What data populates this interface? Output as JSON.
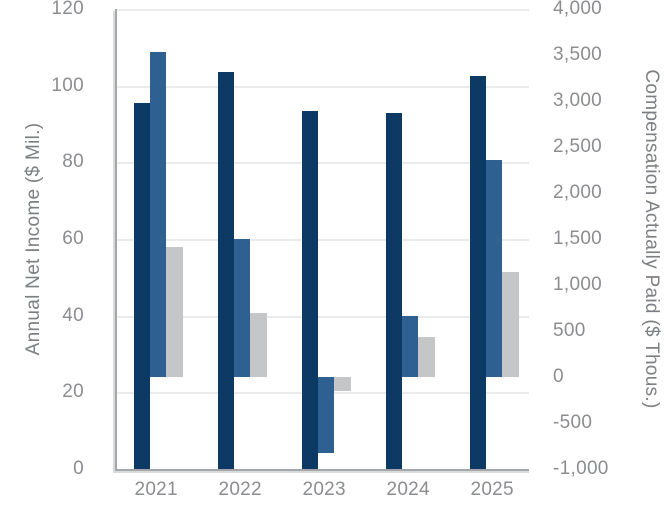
{
  "chart_data": {
    "type": "bar",
    "title": "",
    "legend": "none",
    "grid": true,
    "categories": [
      "2021",
      "2022",
      "2023",
      "2024",
      "2025"
    ],
    "series": [
      {
        "name": "dark-navy-bars-annual-net-income",
        "axis": "left",
        "color": "#0d3a64",
        "values": [
          95.5,
          103.5,
          93.5,
          93,
          102.5
        ]
      },
      {
        "name": "medium-blue-bars-compensation",
        "axis": "right",
        "color": "#2e6191",
        "values": [
          3530,
          1500,
          -830,
          665,
          2360
        ]
      },
      {
        "name": "light-gray-bars-compensation",
        "axis": "right",
        "color": "#c5c6c8",
        "values": [
          1410,
          700,
          -150,
          430,
          1140
        ]
      }
    ],
    "left_axis": {
      "label": "Annual Net Income ($ Mil.)",
      "min": 0,
      "max": 120,
      "tick_step": 20,
      "tick_values": [
        120,
        100,
        80,
        60,
        40,
        20,
        0
      ],
      "tick_labels": [
        "120",
        "100",
        "80",
        "60",
        "40",
        "20",
        "0"
      ]
    },
    "right_axis": {
      "label": "Compensation Actually Paid ($ Thous.)",
      "min": -1000,
      "max": 4000,
      "tick_step": 500,
      "tick_values": [
        4000,
        3500,
        3000,
        2500,
        2000,
        1500,
        1000,
        500,
        0,
        -500,
        -1000
      ],
      "tick_labels": [
        "4,000",
        "3,500",
        "3,000",
        "2,500",
        "2,000",
        "1,500",
        "1,000",
        "500",
        "0",
        "-500",
        "-1,000"
      ]
    },
    "style": {
      "background": "#ffffff",
      "gridline_color": "#eaebec",
      "axis_line_color": "#a4a7aa",
      "tick_text_color": "#8b8d90",
      "title_text_color": "#7d8083"
    }
  }
}
